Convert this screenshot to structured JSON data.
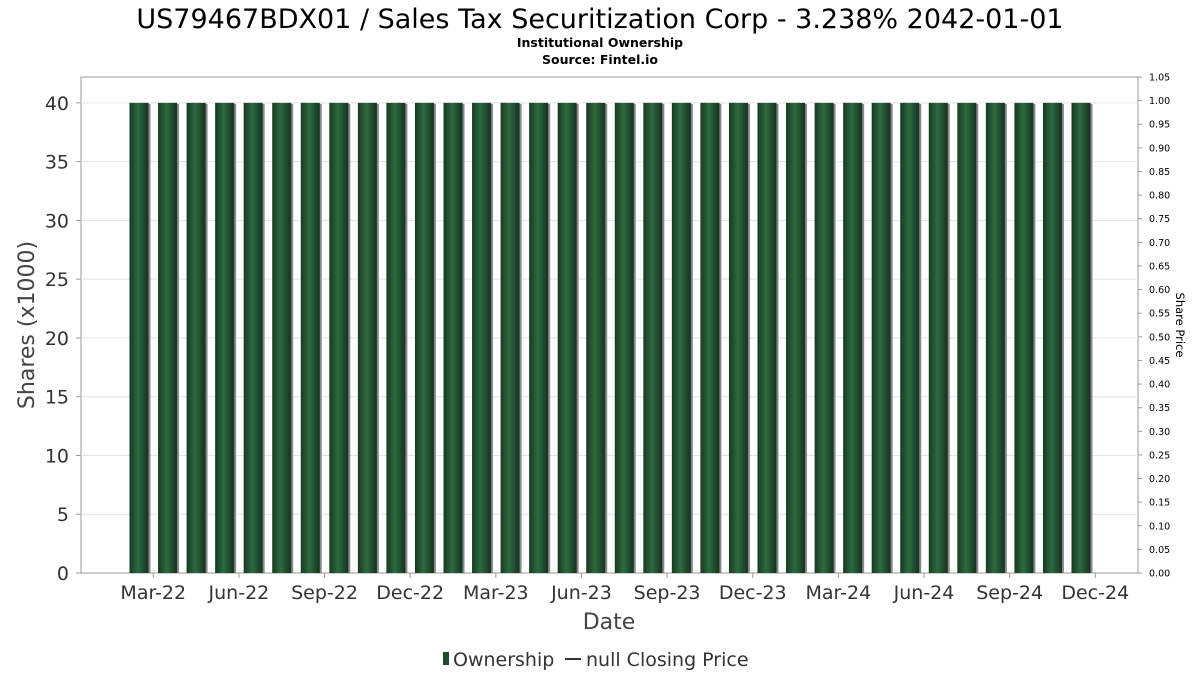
{
  "chart_data": {
    "type": "bar",
    "title": "US79467BDX01 / Sales Tax Securitization Corp - 3.238% 2042-01-01",
    "subtitle": "Institutional Ownership",
    "source": "Source: Fintel.io",
    "xlabel": "Date",
    "ylabel": "Shares (x1000)",
    "y2label": "Share Price",
    "ylim": [
      0,
      42.2
    ],
    "y2lim": [
      0,
      1.05
    ],
    "yticks": [
      0,
      5,
      10,
      15,
      20,
      25,
      30,
      35,
      40
    ],
    "y2ticks": [
      "0.00",
      "0.05",
      "0.10",
      "0.15",
      "0.20",
      "0.25",
      "0.30",
      "0.35",
      "0.40",
      "0.45",
      "0.50",
      "0.55",
      "0.60",
      "0.65",
      "0.70",
      "0.75",
      "0.80",
      "0.85",
      "0.90",
      "0.95",
      "1.00",
      "1.05"
    ],
    "x_tick_labels": [
      "Mar-22",
      "Jun-22",
      "Sep-22",
      "Dec-22",
      "Mar-23",
      "Jun-23",
      "Sep-23",
      "Dec-23",
      "Mar-24",
      "Jun-24",
      "Sep-24",
      "Dec-24"
    ],
    "grid": true,
    "legend_position": "bottom",
    "series": [
      {
        "name": "Ownership",
        "type": "bar",
        "color": "#1f4a2c",
        "values": [
          40,
          40,
          40,
          40,
          40,
          40,
          40,
          40,
          40,
          40,
          40,
          40,
          40,
          40,
          40,
          40,
          40,
          40,
          40,
          40,
          40,
          40,
          40,
          40,
          40,
          40,
          40,
          40,
          40,
          40,
          40,
          40,
          40,
          40
        ]
      },
      {
        "name": "null Closing Price",
        "type": "line",
        "color": "#333333",
        "values": []
      }
    ]
  }
}
